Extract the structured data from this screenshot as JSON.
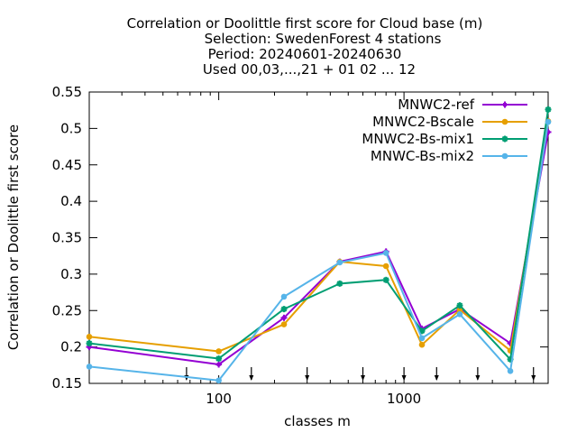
{
  "chart_data": {
    "type": "line",
    "title_lines": [
      "Correlation or Doolittle first score  for Cloud base (m)",
      "Selection: SwedenForest      4 stations",
      "Period: 20240601-20240630",
      "Used 00,03,...,21 + 01 02 ... 12"
    ],
    "xlabel": "classes m",
    "ylabel": "Correlation or Doolittle first score",
    "xscale": "log",
    "xlim": [
      20,
      6000
    ],
    "ylim": [
      0.15,
      0.55
    ],
    "x_ticks": [
      {
        "value": 100,
        "label": "100"
      },
      {
        "value": 1000,
        "label": "1000"
      }
    ],
    "y_ticks": [
      {
        "value": 0.15,
        "label": "0.15"
      },
      {
        "value": 0.2,
        "label": "0.2"
      },
      {
        "value": 0.25,
        "label": "0.25"
      },
      {
        "value": 0.3,
        "label": "0.3"
      },
      {
        "value": 0.35,
        "label": "0.35"
      },
      {
        "value": 0.4,
        "label": "0.4"
      },
      {
        "value": 0.45,
        "label": "0.45"
      },
      {
        "value": 0.5,
        "label": "0.5"
      },
      {
        "value": 0.55,
        "label": "0.55"
      }
    ],
    "grid": false,
    "legend_position": "top-right",
    "class_boundaries": [
      67,
      150,
      300,
      600,
      1000,
      1500,
      2500,
      5000
    ],
    "x": [
      20,
      100,
      225,
      450,
      800,
      1250,
      2000,
      3750,
      6000
    ],
    "series": [
      {
        "name": "MNWC2-ref",
        "color": "#9400d3",
        "marker": "cross",
        "values": [
          0.2,
          0.176,
          0.24,
          0.317,
          0.331,
          0.225,
          0.252,
          0.205,
          0.495
        ]
      },
      {
        "name": "MNWC2-Bscale",
        "color": "#e69f00",
        "marker": "circle",
        "values": [
          0.214,
          0.194,
          0.231,
          0.317,
          0.311,
          0.203,
          0.251,
          0.195,
          0.51
        ]
      },
      {
        "name": "MNWC2-Bs-mix1",
        "color": "#009e73",
        "marker": "star",
        "values": [
          0.205,
          0.184,
          0.252,
          0.287,
          0.292,
          0.222,
          0.257,
          0.183,
          0.526
        ]
      },
      {
        "name": "MNWC-Bs-mix2",
        "color": "#56b4e9",
        "marker": "circle",
        "values": [
          0.173,
          0.154,
          0.269,
          0.316,
          0.329,
          0.212,
          0.245,
          0.167,
          0.509
        ]
      }
    ]
  }
}
